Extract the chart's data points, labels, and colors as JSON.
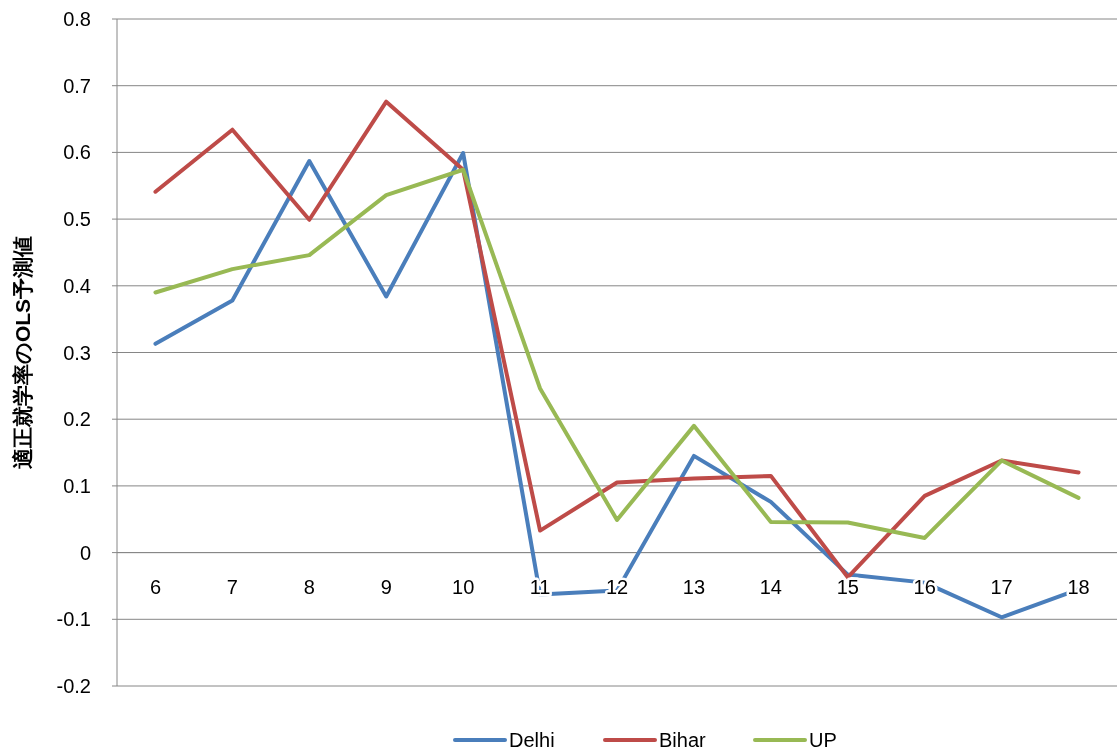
{
  "chart_data": {
    "type": "line",
    "ylabel": "適正就学率のOLS予測値",
    "categories": [
      "6",
      "7",
      "8",
      "9",
      "10",
      "11",
      "12",
      "13",
      "14",
      "15",
      "16",
      "17",
      "18"
    ],
    "series": [
      {
        "name": "Delhi",
        "color": "#4a7ebb",
        "values": [
          0.313,
          0.378,
          0.587,
          0.384,
          0.599,
          -0.063,
          -0.057,
          0.145,
          0.076,
          -0.033,
          -0.045,
          -0.097,
          -0.055
        ]
      },
      {
        "name": "Bihar",
        "color": "#be4b48",
        "values": [
          0.541,
          0.634,
          0.499,
          0.676,
          0.574,
          0.033,
          0.105,
          0.111,
          0.115,
          -0.037,
          0.085,
          0.138,
          0.12
        ]
      },
      {
        "name": "UP",
        "color": "#98b954",
        "values": [
          0.39,
          0.425,
          0.446,
          0.536,
          0.574,
          0.246,
          0.049,
          0.19,
          0.046,
          0.045,
          0.022,
          0.138,
          0.082
        ]
      }
    ],
    "ylim": [
      -0.2,
      0.8
    ],
    "yticks": [
      -0.2,
      -0.1,
      0,
      0.1,
      0.2,
      0.3,
      0.4,
      0.5,
      0.6,
      0.7,
      0.8
    ],
    "grid": "y",
    "legend": "bottom",
    "marker": "none",
    "line_style": "solid"
  }
}
